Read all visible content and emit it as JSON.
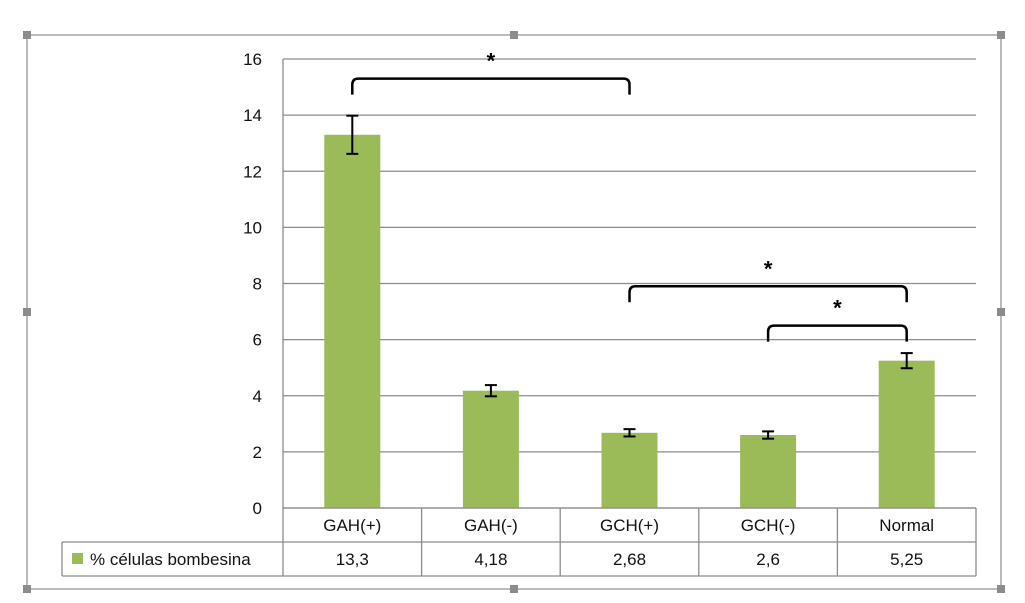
{
  "chart_data": {
    "type": "bar",
    "categories": [
      "GAH(+)",
      "GAH(-)",
      "GCH(+)",
      "GCH(-)",
      "Normal"
    ],
    "series": [
      {
        "name": "% células bombesina",
        "values": [
          13.3,
          4.18,
          2.68,
          2.6,
          5.25
        ],
        "value_labels": [
          "13,3",
          "4,18",
          "2,68",
          "2,6",
          "5,25"
        ],
        "error": [
          0.68,
          0.2,
          0.13,
          0.13,
          0.27
        ],
        "color": "#9BBB59"
      }
    ],
    "ylim": [
      0,
      16
    ],
    "yticks": [
      0,
      2,
      4,
      6,
      8,
      10,
      12,
      14,
      16
    ],
    "grid": true,
    "legend": "data-table",
    "annotations": [
      {
        "label": "*",
        "from": "GAH(+)",
        "to": "GCH(+)",
        "level": 15.3
      },
      {
        "label": "*",
        "from": "GCH(+)",
        "to": "Normal",
        "level": 7.9
      },
      {
        "label": "*",
        "from": "GCH(-)",
        "to": "Normal",
        "level": 6.5
      }
    ]
  }
}
